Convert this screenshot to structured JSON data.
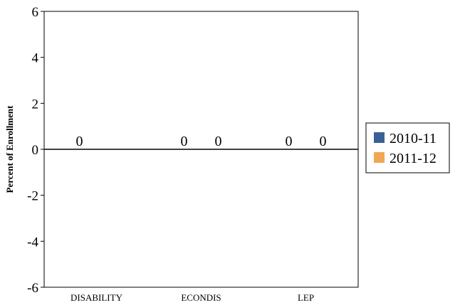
{
  "chart_data": {
    "type": "bar",
    "title": "",
    "xlabel": "",
    "ylabel": "Percent of Enrollment",
    "ylim": [
      -6,
      6
    ],
    "yticks": [
      6,
      4,
      2,
      0,
      -2,
      -4,
      -6
    ],
    "grid": false,
    "legend_position": "right",
    "categories": [
      "DISABILITY",
      "ECONDIS",
      "LEP"
    ],
    "series": [
      {
        "name": "2010-11",
        "color": "#3a6193",
        "values": [
          0,
          0,
          0
        ],
        "labels": [
          "0",
          "0",
          "0"
        ]
      },
      {
        "name": "2011-12",
        "color": "#f0a753",
        "values": [
          null,
          0,
          0
        ],
        "labels": [
          "",
          "0",
          "0"
        ]
      }
    ]
  }
}
